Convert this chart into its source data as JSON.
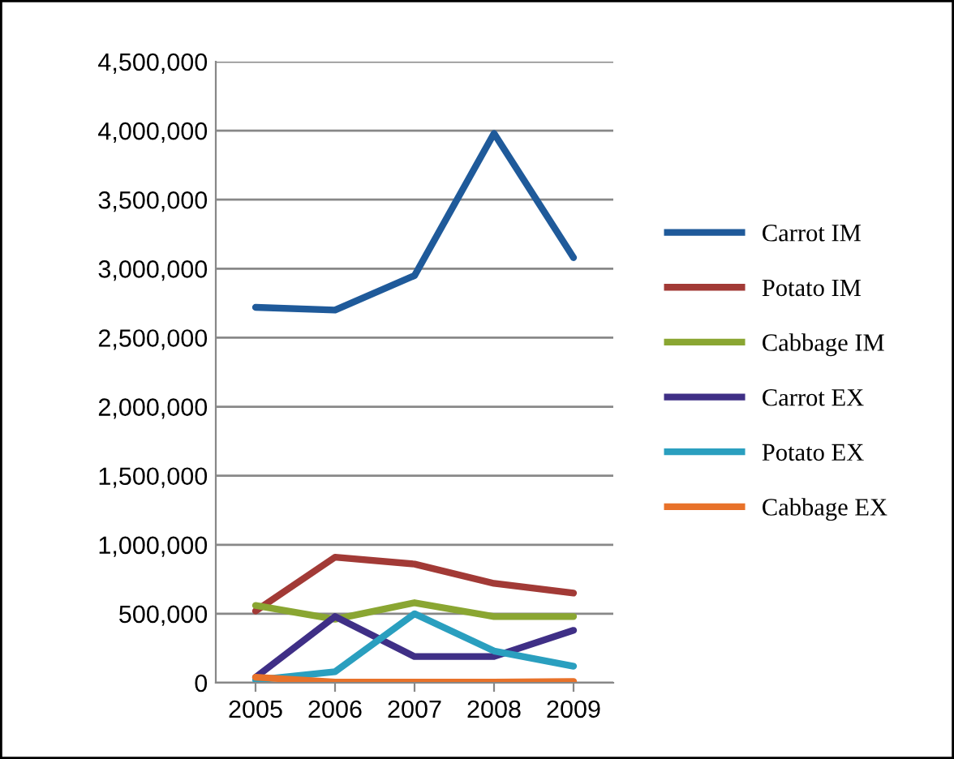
{
  "chart_data": {
    "type": "line",
    "categories": [
      "2005",
      "2006",
      "2007",
      "2008",
      "2009"
    ],
    "ylim": [
      0,
      4500000
    ],
    "yticks": [
      {
        "value": 0,
        "label": "0"
      },
      {
        "value": 500000,
        "label": "500,000"
      },
      {
        "value": 1000000,
        "label": "1,000,000"
      },
      {
        "value": 1500000,
        "label": "1,500,000"
      },
      {
        "value": 2000000,
        "label": "2,000,000"
      },
      {
        "value": 2500000,
        "label": "2,500,000"
      },
      {
        "value": 3000000,
        "label": "3,000,000"
      },
      {
        "value": 3500000,
        "label": "3,500,000"
      },
      {
        "value": 4000000,
        "label": "4,000,000"
      },
      {
        "value": 4500000,
        "label": "4,500,000"
      }
    ],
    "grid": "y",
    "legend": "right",
    "marker": "none",
    "line_style": "solid",
    "series": [
      {
        "name": "Carrot IM",
        "color": "#1f5a9a",
        "values": [
          2720000,
          2700000,
          2950000,
          3980000,
          3080000
        ]
      },
      {
        "name": "Potato IM",
        "color": "#a23a36",
        "values": [
          520000,
          910000,
          860000,
          720000,
          650000
        ]
      },
      {
        "name": "Cabbage IM",
        "color": "#8aa632",
        "values": [
          560000,
          460000,
          580000,
          480000,
          480000
        ]
      },
      {
        "name": "Carrot EX",
        "color": "#3f2f86",
        "values": [
          40000,
          480000,
          190000,
          190000,
          380000
        ]
      },
      {
        "name": "Potato EX",
        "color": "#2a9fbf",
        "values": [
          20000,
          80000,
          500000,
          230000,
          120000
        ]
      },
      {
        "name": "Cabbage EX",
        "color": "#e8722a",
        "values": [
          40000,
          5000,
          5000,
          5000,
          10000
        ]
      }
    ]
  }
}
